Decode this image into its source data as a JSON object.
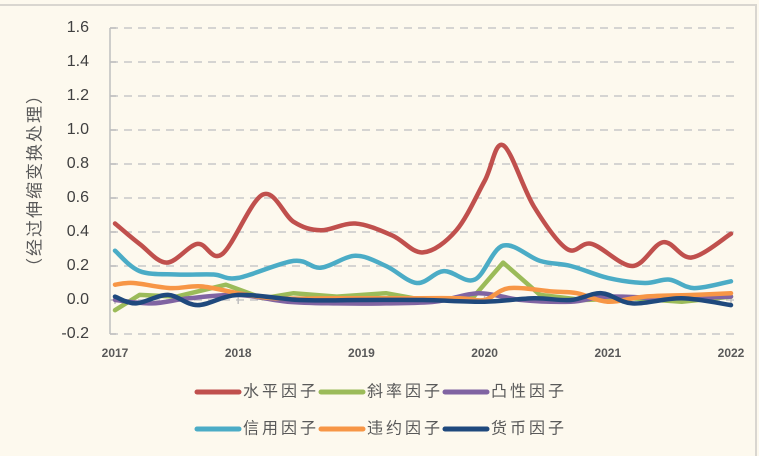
{
  "chart_data": {
    "type": "line",
    "title": "",
    "xlabel": "",
    "ylabel": "（经过伸缩变换处理）",
    "xlim": [
      2017,
      2022
    ],
    "ylim": [
      -0.2,
      1.6
    ],
    "x_ticks": [
      "2017",
      "2018",
      "2019",
      "2020",
      "2021",
      "2022"
    ],
    "y_ticks": [
      "-0.2",
      "0.0",
      "0.2",
      "0.4",
      "0.6",
      "0.8",
      "1.0",
      "1.2",
      "1.4",
      "1.6"
    ],
    "grid": "horizontal-dashed",
    "legend_position": "bottom",
    "series": [
      {
        "name": "水平因子",
        "color": "#c0504d",
        "x": [
          2017.0,
          2017.2,
          2017.42,
          2017.67,
          2017.87,
          2018.2,
          2018.45,
          2018.67,
          2018.95,
          2019.25,
          2019.5,
          2019.77,
          2020.0,
          2020.15,
          2020.4,
          2020.67,
          2020.87,
          2021.2,
          2021.45,
          2021.68,
          2022.0
        ],
        "values": [
          0.45,
          0.33,
          0.22,
          0.33,
          0.27,
          0.62,
          0.46,
          0.41,
          0.45,
          0.38,
          0.28,
          0.41,
          0.7,
          0.91,
          0.55,
          0.3,
          0.33,
          0.2,
          0.34,
          0.25,
          0.39
        ]
      },
      {
        "name": "斜率因子",
        "color": "#9bbb59",
        "x": [
          2017.0,
          2017.2,
          2017.5,
          2017.9,
          2018.2,
          2018.45,
          2018.8,
          2019.2,
          2019.5,
          2019.9,
          2020.15,
          2020.45,
          2020.8,
          2021.2,
          2021.6,
          2022.0
        ],
        "values": [
          -0.06,
          0.03,
          0.02,
          0.09,
          0.01,
          0.04,
          0.02,
          0.04,
          0.0,
          0.01,
          0.22,
          0.03,
          0.0,
          0.01,
          -0.01,
          0.02
        ]
      },
      {
        "name": "凸性因子",
        "color": "#8064a2",
        "x": [
          2017.0,
          2017.3,
          2017.6,
          2018.0,
          2018.4,
          2018.8,
          2019.2,
          2019.6,
          2019.95,
          2020.3,
          2020.7,
          2021.0,
          2021.5,
          2022.0
        ],
        "values": [
          0.0,
          -0.02,
          0.01,
          0.03,
          -0.01,
          -0.02,
          -0.02,
          -0.01,
          0.04,
          0.0,
          -0.01,
          0.02,
          0.01,
          0.02
        ]
      },
      {
        "name": "信用因子",
        "color": "#4bacc6",
        "x": [
          2017.0,
          2017.2,
          2017.5,
          2017.8,
          2018.0,
          2018.45,
          2018.67,
          2018.95,
          2019.2,
          2019.45,
          2019.67,
          2019.92,
          2020.15,
          2020.45,
          2020.7,
          2021.0,
          2021.3,
          2021.5,
          2021.7,
          2022.0
        ],
        "values": [
          0.29,
          0.17,
          0.15,
          0.15,
          0.13,
          0.23,
          0.19,
          0.26,
          0.2,
          0.1,
          0.17,
          0.12,
          0.32,
          0.23,
          0.2,
          0.13,
          0.1,
          0.12,
          0.07,
          0.11
        ]
      },
      {
        "name": "违约因子",
        "color": "#f79646",
        "x": [
          2017.0,
          2017.15,
          2017.45,
          2017.7,
          2018.0,
          2018.3,
          2018.8,
          2019.3,
          2019.8,
          2020.0,
          2020.2,
          2020.55,
          2020.75,
          2021.0,
          2021.3,
          2021.7,
          2022.0
        ],
        "values": [
          0.09,
          0.1,
          0.07,
          0.08,
          0.04,
          0.01,
          0.01,
          0.01,
          0.01,
          0.0,
          0.07,
          0.05,
          0.04,
          -0.01,
          0.02,
          0.03,
          0.04
        ]
      },
      {
        "name": "货币因子",
        "color": "#1f497d",
        "x": [
          2017.0,
          2017.17,
          2017.43,
          2017.67,
          2018.0,
          2018.5,
          2019.0,
          2019.5,
          2020.0,
          2020.4,
          2020.7,
          2020.95,
          2021.2,
          2021.6,
          2022.0
        ],
        "values": [
          0.02,
          -0.02,
          0.03,
          -0.03,
          0.03,
          0.0,
          0.0,
          0.0,
          -0.01,
          0.01,
          0.0,
          0.04,
          -0.02,
          0.01,
          -0.03
        ]
      }
    ]
  }
}
